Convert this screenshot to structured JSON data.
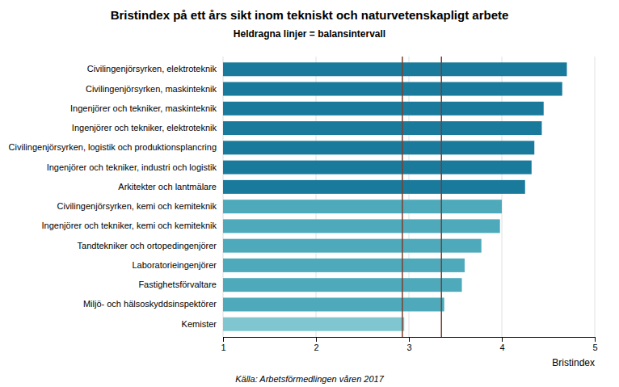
{
  "chart_data": {
    "type": "bar",
    "orientation": "horizontal",
    "title": "Bristindex på ett års sikt inom tekniskt och naturvetenskapligt arbete",
    "subtitle": "Heldragna linjer = balansintervall",
    "categories": [
      "Civilingenjörsyrken, elektroteknik",
      "Civilingenjörsyrken, maskinteknik",
      "Ingenjörer och tekniker, maskinteknik",
      "Ingenjörer och tekniker, elektroteknik",
      "Civilingenjörsyrken, logistik och produktionsplancring",
      "Ingenjörer och tekniker, industri och logistik",
      "Arkitekter och lantmälare",
      "Civilingenjörsyrken, kemi och kemiteknik",
      "Ingenjörer och tekniker, kemi och kemiteknik",
      "Tandtekniker och ortopedingenjörer",
      "Laboratorieingenjörer",
      "Fastighetsförvaltare",
      "Miljö- och hälsoskyddsinspektörer",
      "Kemister"
    ],
    "values": [
      4.7,
      4.65,
      4.45,
      4.43,
      4.35,
      4.32,
      4.25,
      4.0,
      3.98,
      3.78,
      3.6,
      3.57,
      3.38,
      2.95
    ],
    "colors": [
      "#1a7a9c",
      "#1a7a9c",
      "#1a7a9c",
      "#1a7a9c",
      "#1a7a9c",
      "#1a7a9c",
      "#1a7a9c",
      "#4eaabb",
      "#4eaabb",
      "#4eaabb",
      "#4eaabb",
      "#4eaabb",
      "#4eaabb",
      "#7fc6d0"
    ],
    "balance_interval": [
      2.93,
      3.35
    ],
    "balance_interval_color": "#7a4030",
    "xlabel": "Bristindex",
    "xlim": [
      1,
      5
    ],
    "xticks": [
      1,
      2,
      3,
      4,
      5
    ],
    "grid": true,
    "source": "Källa: Arbetsförmedlingen våren 2017"
  }
}
